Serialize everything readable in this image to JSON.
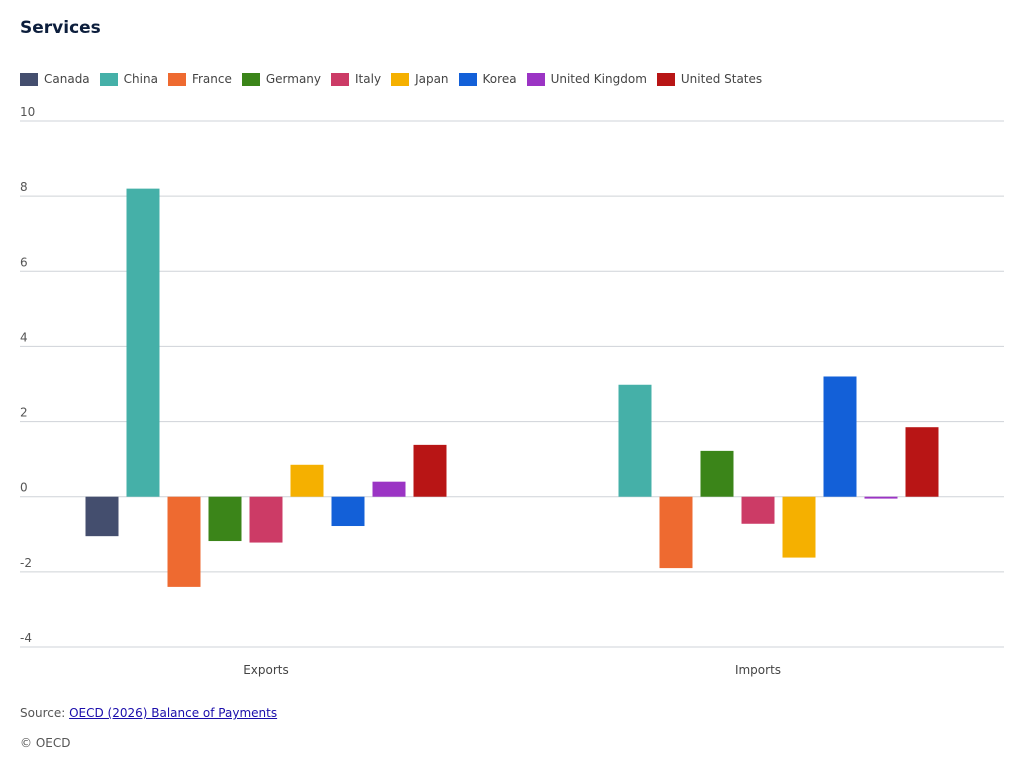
{
  "chart_data": {
    "type": "bar",
    "title": "Services",
    "categories": [
      "Exports",
      "Imports"
    ],
    "ylim": [
      -4,
      10
    ],
    "yticks": [
      10,
      8,
      6,
      4,
      2,
      0,
      -2,
      -4
    ],
    "grid": true,
    "legend_position": "top-left",
    "series": [
      {
        "name": "Canada",
        "color": "#444e6e",
        "values": [
          -1.05,
          null
        ]
      },
      {
        "name": "China",
        "color": "#45b0a8",
        "values": [
          8.2,
          2.98
        ]
      },
      {
        "name": "France",
        "color": "#ee6a30",
        "values": [
          -2.4,
          -1.9
        ]
      },
      {
        "name": "Germany",
        "color": "#3b8519",
        "values": [
          -1.18,
          1.22
        ]
      },
      {
        "name": "Italy",
        "color": "#cc3b66",
        "values": [
          -1.22,
          -0.72
        ]
      },
      {
        "name": "Japan",
        "color": "#f5b000",
        "values": [
          0.85,
          -1.62
        ]
      },
      {
        "name": "Korea",
        "color": "#1360d8",
        "values": [
          -0.78,
          3.2
        ]
      },
      {
        "name": "United Kingdom",
        "color": "#9b34c4",
        "values": [
          0.4,
          -0.05
        ]
      },
      {
        "name": "United States",
        "color": "#b81515",
        "values": [
          1.38,
          1.85
        ]
      }
    ]
  },
  "source": {
    "prefix": "Source: ",
    "link_text": "OECD (2026) Balance of Payments"
  },
  "copyright": "© OECD"
}
